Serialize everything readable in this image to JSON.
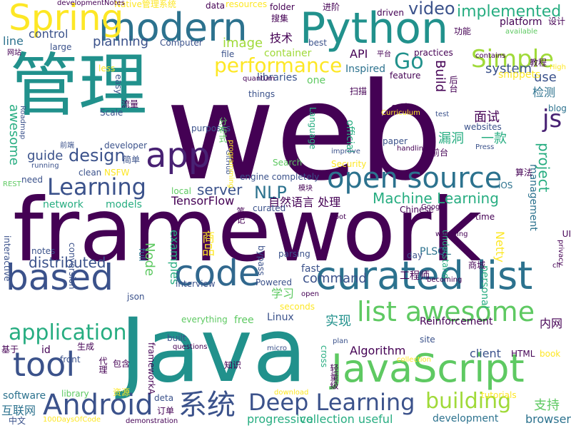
{
  "palette": {
    "c1": "#440154",
    "c2": "#3b528b",
    "c3": "#21918c",
    "c4": "#5ec962",
    "c5": "#fde725",
    "c6": "#2c728e",
    "c7": "#27ad81",
    "c8": "#a0da39",
    "c9": "#31688e",
    "c10": "#482173"
  },
  "words": [
    {
      "text": "web",
      "color": "#440154"
    },
    {
      "text": "framework",
      "color": "#440154"
    },
    {
      "text": "Java",
      "color": "#21918c"
    },
    {
      "text": "管理",
      "color": "#21918c"
    },
    {
      "text": "Python",
      "color": "#21918c"
    },
    {
      "text": "modern",
      "color": "#2c728e"
    },
    {
      "text": "Spring",
      "color": "#fde725"
    },
    {
      "text": "curated list",
      "color": "#2c728e"
    },
    {
      "text": "JavaScript",
      "color": "#5ec962"
    },
    {
      "text": "based",
      "color": "#3b528b"
    },
    {
      "text": "code",
      "color": "#31688e"
    },
    {
      "text": "app",
      "color": "#482173"
    },
    {
      "text": "tool",
      "color": "#3b528b"
    },
    {
      "text": "open source",
      "color": "#2c728e"
    },
    {
      "text": "list awesome",
      "color": "#5ec962"
    },
    {
      "text": "Android",
      "color": "#3b528b"
    },
    {
      "text": "Deep Learning",
      "color": "#3b528b"
    },
    {
      "text": "application",
      "color": "#27ad81"
    },
    {
      "text": "Simple",
      "color": "#a0da39"
    },
    {
      "text": "系统",
      "color": "#3b528b"
    },
    {
      "text": "Learning",
      "color": "#3b528b"
    },
    {
      "text": "performance",
      "color": "#fde725"
    },
    {
      "text": "building",
      "color": "#a0da39"
    },
    {
      "text": "Go",
      "color": "#21918c"
    },
    {
      "text": "js",
      "color": "#482173"
    },
    {
      "text": "implemented",
      "color": "#27ad81"
    },
    {
      "text": "video",
      "color": "#3b528b"
    },
    {
      "text": "design",
      "color": "#3b528b"
    },
    {
      "text": "Machine Learning",
      "color": "#27ad81"
    },
    {
      "text": "NLP",
      "color": "#2c728e"
    },
    {
      "text": "server",
      "color": "#3b528b"
    },
    {
      "text": "project",
      "color": "#27ad81"
    },
    {
      "text": "distributed",
      "color": "#3b528b"
    },
    {
      "text": "command",
      "color": "#3b528b"
    },
    {
      "text": "planning",
      "color": "#3b528b"
    },
    {
      "text": "image",
      "color": "#a0da39"
    },
    {
      "text": "Build",
      "color": "#440154"
    },
    {
      "text": "system",
      "color": "#3b528b"
    },
    {
      "text": "use",
      "color": "#3b528b"
    },
    {
      "text": "awesome",
      "color": "#27ad81"
    },
    {
      "text": "guide",
      "color": "#3b528b"
    },
    {
      "text": "control",
      "color": "#3b528b"
    },
    {
      "text": "line",
      "color": "#2c728e"
    },
    {
      "text": "技术",
      "color": "#440154"
    },
    {
      "text": "API",
      "color": "#440154"
    },
    {
      "text": "Inspired",
      "color": "#2c728e"
    },
    {
      "text": "container",
      "color": "#a0da39"
    },
    {
      "text": "TensorFlow",
      "color": "#440154"
    },
    {
      "text": "自然语言 处理",
      "color": "#440154"
    },
    {
      "text": "network",
      "color": "#27ad81"
    },
    {
      "text": "models",
      "color": "#27ad81"
    },
    {
      "text": "面试",
      "color": "#440154"
    },
    {
      "text": "漏洞",
      "color": "#27ad81"
    },
    {
      "text": "一款",
      "color": "#27ad81"
    },
    {
      "text": "检测",
      "color": "#2c728e"
    },
    {
      "text": "management",
      "color": "#2c728e"
    },
    {
      "text": "Node",
      "color": "#5ec962"
    },
    {
      "text": "examples",
      "color": "#27ad81"
    },
    {
      "text": "商品",
      "color": "#fde725"
    },
    {
      "text": "Netty",
      "color": "#fde725"
    },
    {
      "text": "fast",
      "color": "#3b528b"
    },
    {
      "text": "学习",
      "color": "#5ec962"
    },
    {
      "text": "实现",
      "color": "#21918c"
    },
    {
      "text": "Linux",
      "color": "#3b528b"
    },
    {
      "text": "free",
      "color": "#5ec962"
    },
    {
      "text": "Algorithm",
      "color": "#440154"
    },
    {
      "text": "client",
      "color": "#3b528b"
    },
    {
      "text": "id",
      "color": "#440154"
    },
    {
      "text": "支持",
      "color": "#5ec962"
    },
    {
      "text": "browser",
      "color": "#2c728e"
    },
    {
      "text": "progressive",
      "color": "#27ad81"
    },
    {
      "text": "collection useful",
      "color": "#27ad81"
    },
    {
      "text": "development",
      "color": "#2c728e"
    },
    {
      "text": "software",
      "color": "#2c728e"
    },
    {
      "text": "互联网",
      "color": "#2c728e"
    },
    {
      "text": "personal",
      "color": "#27ad81"
    },
    {
      "text": "内网",
      "color": "#440154"
    },
    {
      "text": "工程师",
      "color": "#440154"
    },
    {
      "text": "official",
      "color": "#27ad81"
    },
    {
      "text": "Reinforcement",
      "color": "#440154"
    },
    {
      "text": "PLSQL",
      "color": "#2c728e"
    },
    {
      "text": "full",
      "color": "#2c728e"
    },
    {
      "text": "libraries",
      "color": "#3b528b"
    },
    {
      "text": "curated",
      "color": "#3b528b"
    },
    {
      "text": "engine completely",
      "color": "#3b528b"
    },
    {
      "text": "one",
      "color": "#5ec962"
    },
    {
      "text": "Computer",
      "color": "#3b528b"
    },
    {
      "text": "best",
      "color": "#3b528b"
    },
    {
      "text": "file",
      "color": "#3b528b"
    },
    {
      "text": "large",
      "color": "#3b528b"
    },
    {
      "text": "practices",
      "color": "#440154"
    },
    {
      "text": "platform",
      "color": "#440154"
    },
    {
      "text": "设计",
      "color": "#440154"
    },
    {
      "text": "功能",
      "color": "#440154"
    },
    {
      "text": "进阶",
      "color": "#440154"
    },
    {
      "text": "搜集",
      "color": "#440154"
    },
    {
      "text": "folder",
      "color": "#440154"
    },
    {
      "text": "resources",
      "color": "#fde725"
    },
    {
      "text": "data",
      "color": "#440154"
    },
    {
      "text": "Native管理系统",
      "color": "#fde725"
    },
    {
      "text": "developmentNotes",
      "color": "#440154"
    },
    {
      "text": "driven",
      "color": "#440154"
    },
    {
      "text": "available",
      "color": "#5ec962"
    },
    {
      "text": "网站",
      "color": "#440154"
    },
    {
      "text": "Chinese",
      "color": "#440154"
    },
    {
      "text": "Google",
      "color": "#440154"
    },
    {
      "text": "time",
      "color": "#440154"
    },
    {
      "text": "iOS",
      "color": "#2c728e"
    },
    {
      "text": "blog",
      "color": "#2c728e"
    },
    {
      "text": "Security",
      "color": "#fde725"
    },
    {
      "text": "Search",
      "color": "#5ec962"
    },
    {
      "text": "Scale",
      "color": "#3b528b"
    },
    {
      "text": "developer",
      "color": "#3b528b"
    },
    {
      "text": "purposes",
      "color": "#3b528b"
    },
    {
      "text": "interview",
      "color": "#3b528b"
    },
    {
      "text": "Powered",
      "color": "#3b528b"
    },
    {
      "text": "seconds",
      "color": "#fde725"
    },
    {
      "text": "everything",
      "color": "#5ec962"
    },
    {
      "text": "built",
      "color": "#3b528b"
    },
    {
      "text": "site",
      "color": "#3b528b"
    },
    {
      "text": "frameworkA",
      "color": "#440154"
    },
    {
      "text": "front",
      "color": "#3b528b"
    },
    {
      "text": "library",
      "color": "#5ec962"
    },
    {
      "text": "json",
      "color": "#3b528b"
    },
    {
      "text": "HTML",
      "color": "#440154"
    },
    {
      "text": "book",
      "color": "#fde725"
    },
    {
      "text": "tutorials",
      "color": "#fde725"
    },
    {
      "text": "micro",
      "color": "#3b528b"
    },
    {
      "text": "plan",
      "color": "#3b528b"
    },
    {
      "text": "collection",
      "color": "#fde725"
    },
    {
      "text": "download",
      "color": "#fde725"
    },
    {
      "text": "demonstration",
      "color": "#440154"
    },
    {
      "text": "cross",
      "color": "#27ad81"
    },
    {
      "text": "Press",
      "color": "#3b528b"
    },
    {
      "text": "test",
      "color": "#3b528b"
    },
    {
      "text": "handling",
      "color": "#440154"
    },
    {
      "text": "improve",
      "color": "#3b528b"
    },
    {
      "text": "paper",
      "color": "#3b528b"
    },
    {
      "text": "websites",
      "color": "#3b528b"
    },
    {
      "text": "前台",
      "color": "#440154"
    },
    {
      "text": "算法",
      "color": "#440154"
    },
    {
      "text": "clean",
      "color": "#3b528b"
    },
    {
      "text": "NSFW",
      "color": "#fde725"
    },
    {
      "text": "简单",
      "color": "#3b528b"
    },
    {
      "text": "前端",
      "color": "#3b528b"
    },
    {
      "text": "running",
      "color": "#3b528b"
    },
    {
      "text": "need",
      "color": "#3b528b"
    },
    {
      "text": "REST",
      "color": "#5ec962"
    },
    {
      "text": "local",
      "color": "#5ec962"
    },
    {
      "text": "模块",
      "color": "#440154"
    },
    {
      "text": "笔记",
      "color": "#440154"
    },
    {
      "text": "Boot",
      "color": "#440154"
    },
    {
      "text": "parsing",
      "color": "#3b528b"
    },
    {
      "text": "conversion",
      "color": "#3b528b"
    },
    {
      "text": "notes",
      "color": "#3b528b"
    },
    {
      "text": "interactive",
      "color": "#3b528b"
    },
    {
      "text": "bypass",
      "color": "#3b528b"
    },
    {
      "text": "day",
      "color": "#3b528b"
    },
    {
      "text": "understand",
      "color": "#27ad81"
    },
    {
      "text": "商城",
      "color": "#440154"
    },
    {
      "text": "becoming",
      "color": "#440154"
    },
    {
      "text": "watching",
      "color": "#440154"
    },
    {
      "text": "open",
      "color": "#440154"
    },
    {
      "text": "基于",
      "color": "#440154"
    },
    {
      "text": "生成",
      "color": "#440154"
    },
    {
      "text": "代理",
      "color": "#440154"
    },
    {
      "text": "包含",
      "color": "#440154"
    },
    {
      "text": "知识",
      "color": "#440154"
    },
    {
      "text": "questions",
      "color": "#440154"
    },
    {
      "text": "资源",
      "color": "#fde725"
    },
    {
      "text": "deta",
      "color": "#3b528b"
    },
    {
      "text": "订单",
      "color": "#440154"
    },
    {
      "text": "中文",
      "color": "#3b528b"
    },
    {
      "text": "100DaysOfCode",
      "color": "#fde725"
    },
    {
      "text": "轻量级",
      "color": "#440154"
    },
    {
      "text": "流量",
      "color": "#440154"
    },
    {
      "text": "easy",
      "color": "#3b528b"
    },
    {
      "text": "less",
      "color": "#fde725"
    },
    {
      "text": "quantum",
      "color": "#440154"
    },
    {
      "text": "things",
      "color": "#3b528b"
    },
    {
      "text": "扫描",
      "color": "#440154"
    },
    {
      "text": "feature",
      "color": "#440154"
    },
    {
      "text": "end",
      "color": "#440154"
    },
    {
      "text": "Curriculum",
      "color": "#fde725"
    },
    {
      "text": "Language",
      "color": "#27ad81"
    },
    {
      "text": "平台",
      "color": "#440154"
    },
    {
      "text": "教程",
      "color": "#440154"
    },
    {
      "text": "contains",
      "color": "#440154"
    },
    {
      "text": "High",
      "color": "#fde725"
    },
    {
      "text": "snippets",
      "color": "#fde725"
    },
    {
      "text": "Roadmap",
      "color": "#3b528b"
    },
    {
      "text": "GitHub",
      "color": "#3b528b"
    },
    {
      "text": "programming",
      "color": "#fde725"
    },
    {
      "text": "分布式",
      "color": "#5ec962"
    },
    {
      "text": "UI",
      "color": "#440154"
    },
    {
      "text": "privacy",
      "color": "#440154"
    },
    {
      "text": "cli",
      "color": "#440154"
    },
    {
      "text": "后台",
      "color": "#440154"
    }
  ]
}
